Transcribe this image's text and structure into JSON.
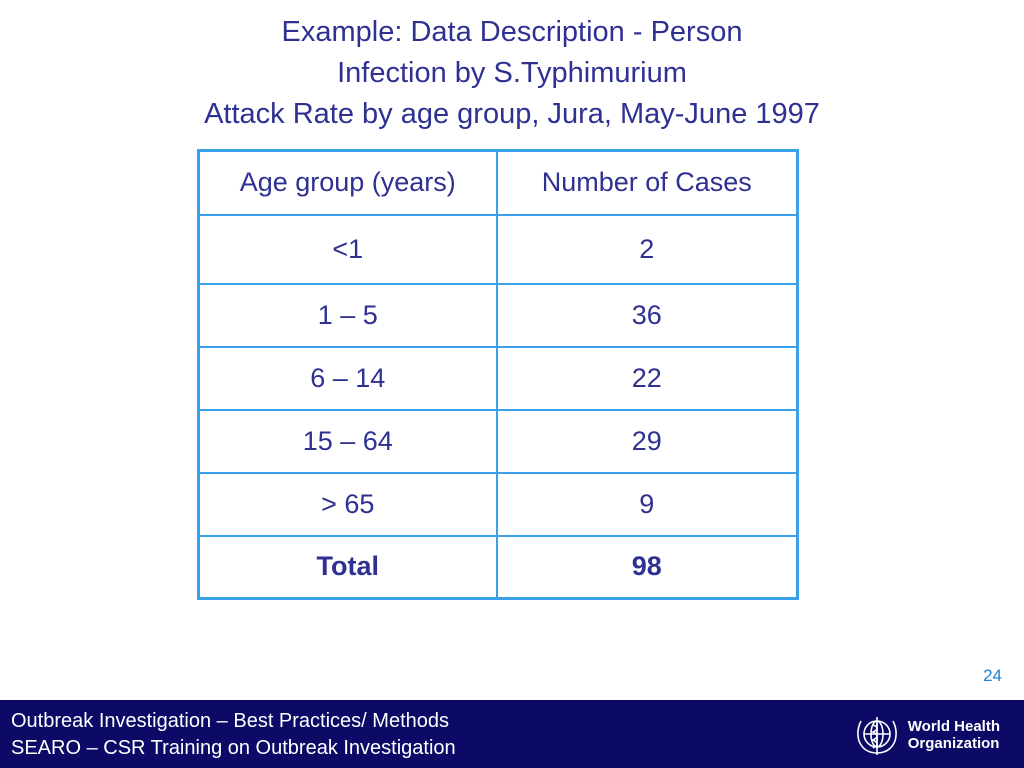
{
  "slide": {
    "title_lines": [
      "Example: Data Description - Person",
      "Infection by S.Typhimurium",
      "Attack Rate by age group, Jura, May-June 1997"
    ],
    "page_number": "24"
  },
  "table": {
    "headers": [
      "Age group (years)",
      "Number of Cases"
    ],
    "rows": [
      [
        "<1",
        "2"
      ],
      [
        "1 – 5",
        "36"
      ],
      [
        "6 – 14",
        "22"
      ],
      [
        "15 – 64",
        "29"
      ],
      [
        "> 65",
        "9"
      ]
    ],
    "total": [
      "Total",
      "98"
    ]
  },
  "footer": {
    "line1": "Outbreak Investigation – Best Practices/ Methods",
    "line2": "SEARO – CSR Training on Outbreak Investigation",
    "logo_text_1": "World Health",
    "logo_text_2": "Organization",
    "logo_icon": "who-emblem-icon"
  },
  "colors": {
    "text": "#2e3192",
    "table_border": "#3aa0e8",
    "footer_bg": "#0c0a66",
    "page_number": "#1e7fd4"
  }
}
